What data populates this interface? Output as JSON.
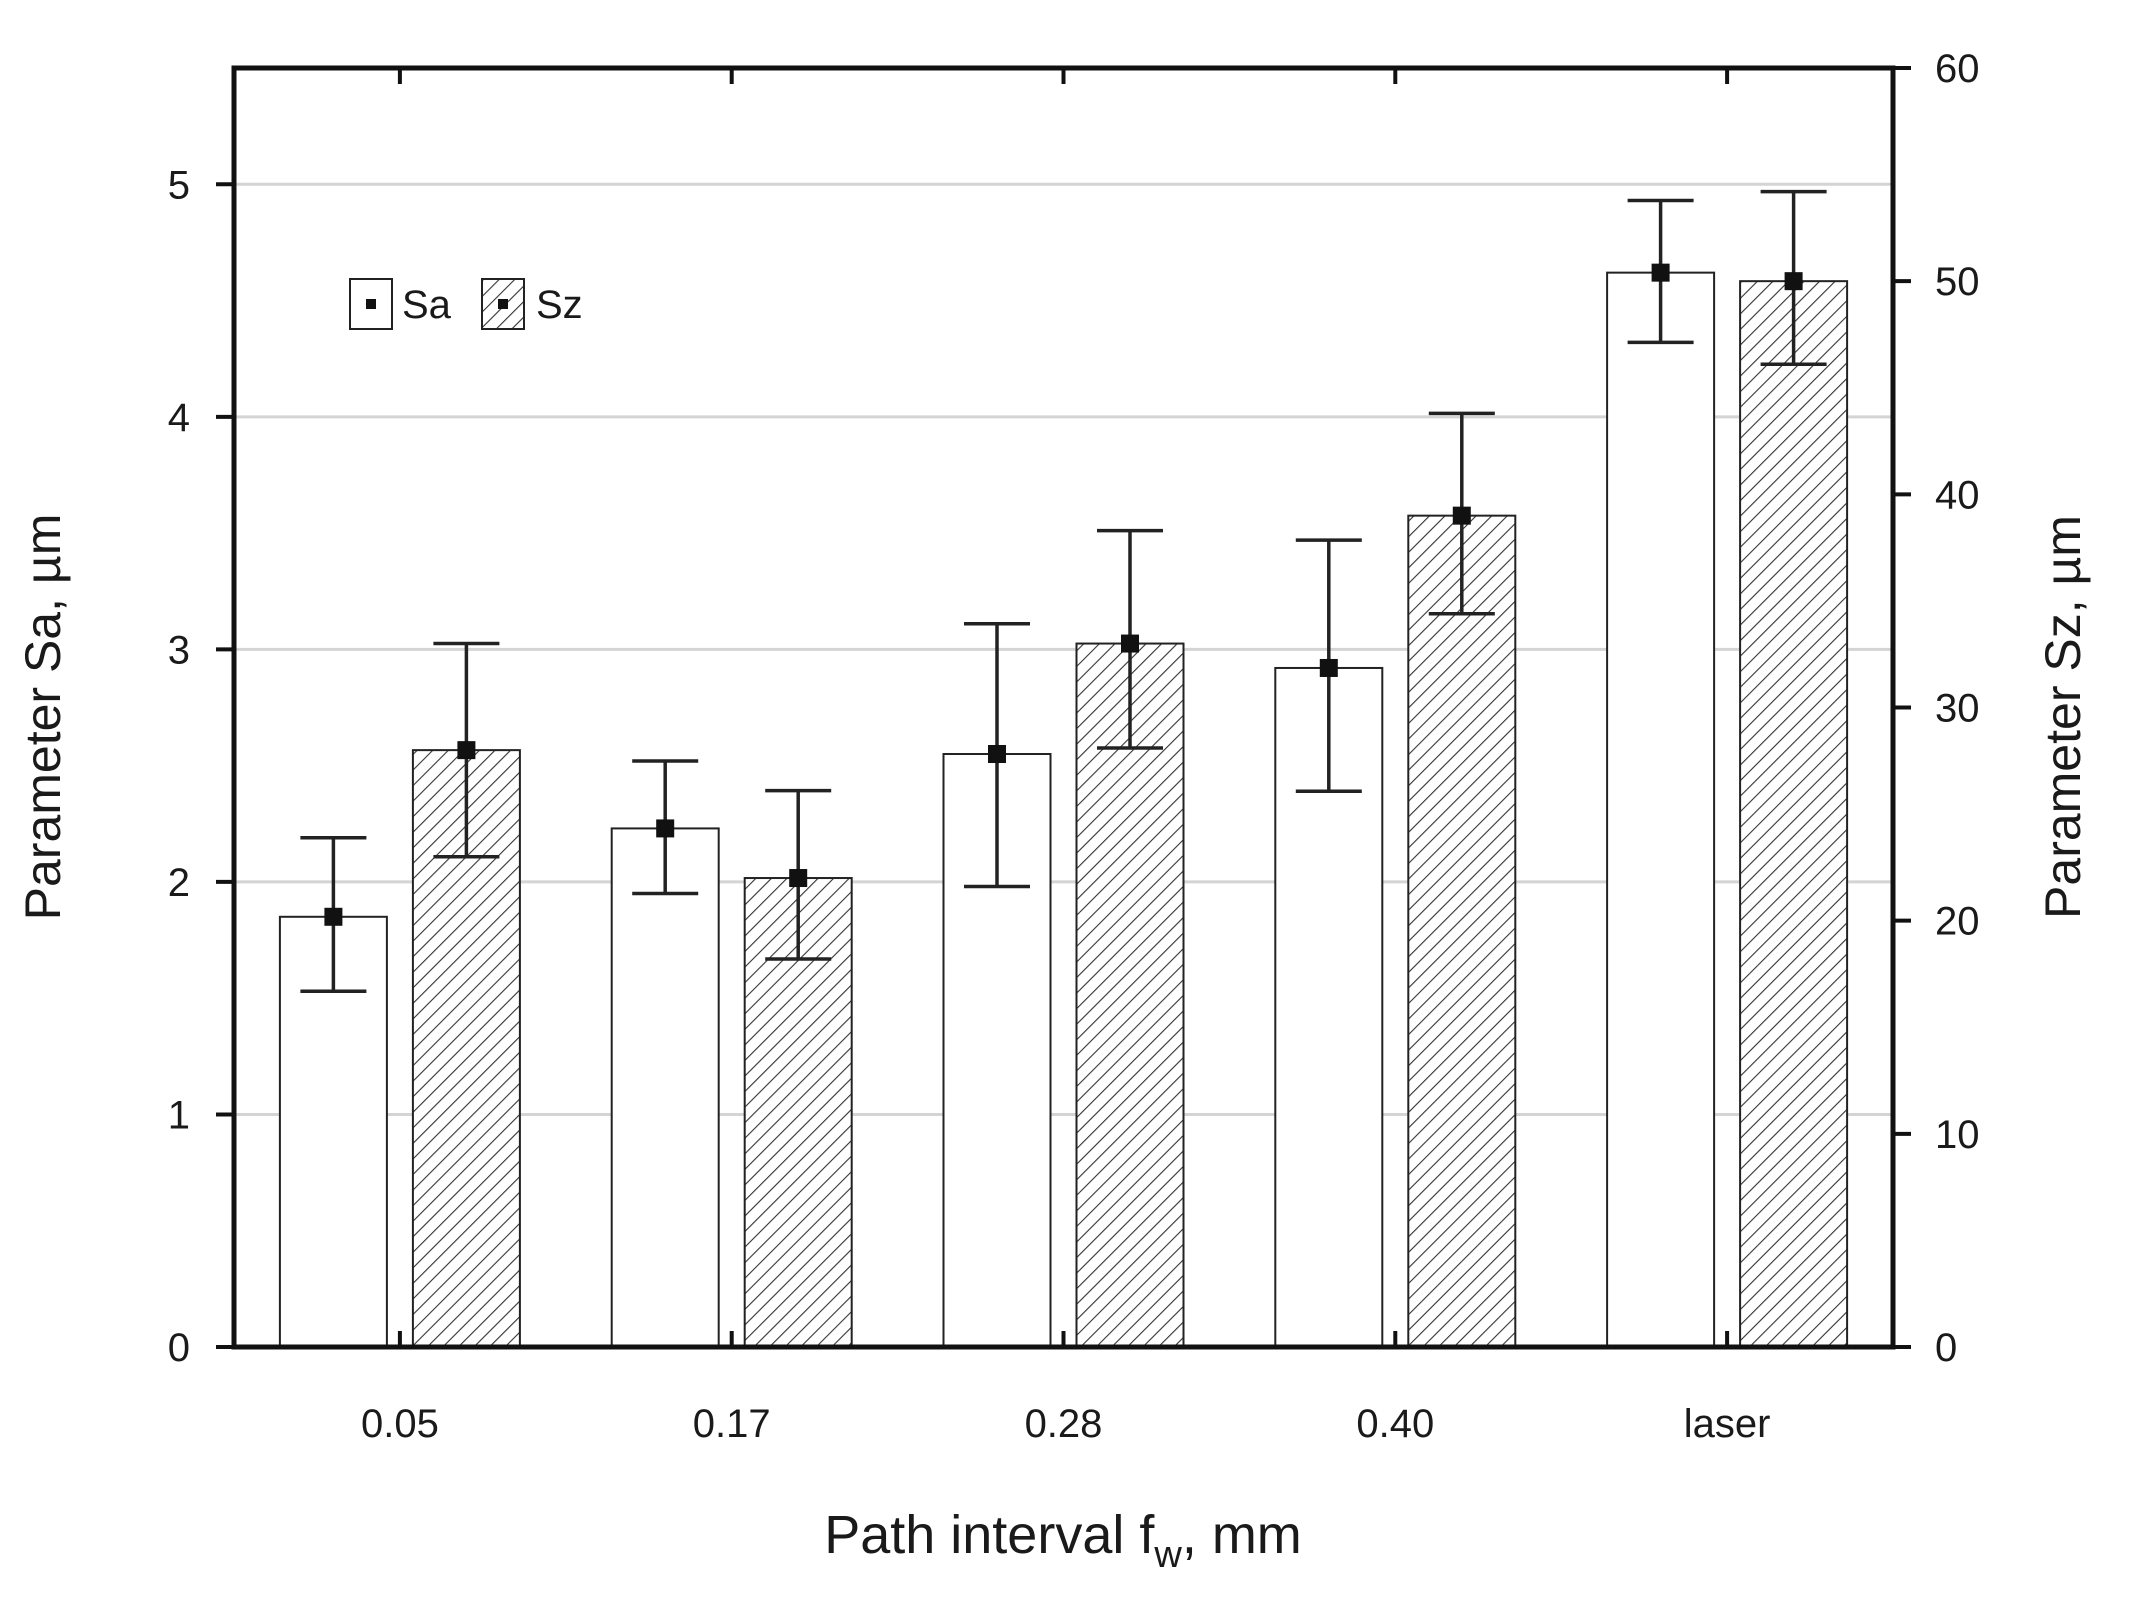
{
  "chart_data": {
    "type": "bar",
    "categories": [
      "0.05",
      "0.17",
      "0.28",
      "0.40",
      "laser"
    ],
    "series": [
      {
        "name": "Sa",
        "axis": "left",
        "values": [
          1.85,
          2.23,
          2.55,
          2.92,
          4.62
        ],
        "err_low": [
          1.53,
          1.95,
          1.98,
          2.39,
          4.32
        ],
        "err_high": [
          2.19,
          2.52,
          3.11,
          3.47,
          4.93
        ],
        "fill": "plain"
      },
      {
        "name": "Sz",
        "axis": "right",
        "values": [
          28.0,
          22.0,
          33.0,
          39.0,
          50.0
        ],
        "err_low": [
          23.0,
          18.2,
          28.1,
          34.4,
          46.1
        ],
        "err_high": [
          33.0,
          26.1,
          38.3,
          43.8,
          54.2
        ],
        "fill": "hatched"
      }
    ],
    "xlabel": {
      "main": "Path interval f",
      "subscript": "w",
      "suffix": ", mm"
    },
    "ylabel_left": "Parameter Sa, µm",
    "ylabel_right": "Parameter Sz, µm",
    "ylim_left": [
      0,
      5.5
    ],
    "ylim_right": [
      0,
      60
    ],
    "yticks_left": [
      "0",
      "1",
      "2",
      "3",
      "4",
      "5"
    ],
    "yticks_right": [
      "0",
      "10",
      "20",
      "30",
      "40",
      "50",
      "60"
    ],
    "grid": "horizontal",
    "legend_position": "top-left",
    "colors": {
      "axis": "#111111",
      "grid": "#d4d4d4",
      "bar_edge": "#222222",
      "bar_fill": "#ffffff",
      "hatch": "#333333",
      "marker": "#111111"
    }
  }
}
